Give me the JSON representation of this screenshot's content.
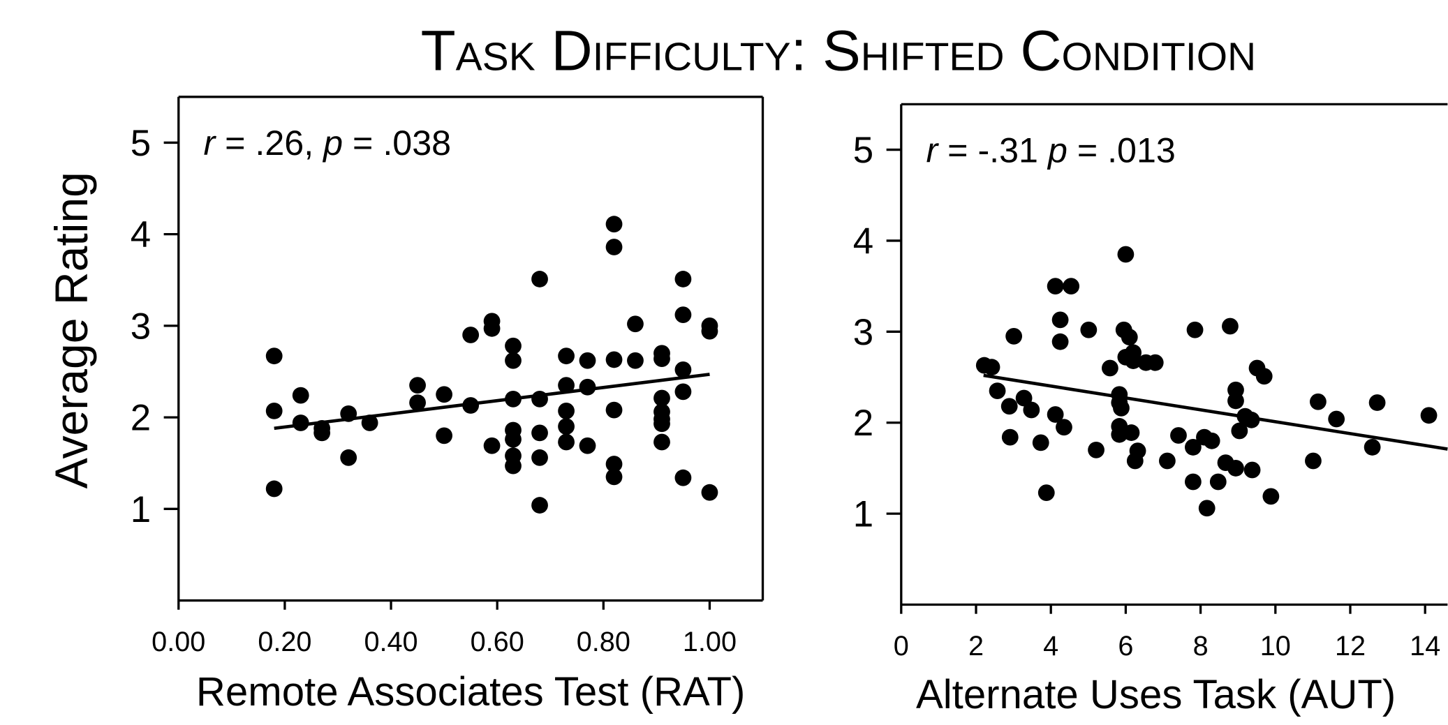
{
  "title": "Task Difficulty: Shifted Condition",
  "chart_data": [
    {
      "type": "scatter",
      "y_label": "Average Rating",
      "x_label": "Remote Associates Test (RAT)",
      "annotation": [
        {
          "text": "r",
          "italic": true
        },
        {
          "text": " = .26, ",
          "italic": false
        },
        {
          "text": "p",
          "italic": true
        },
        {
          "text": " = .038",
          "italic": false
        }
      ],
      "color": "#000000",
      "xlim": [
        0,
        1.1
      ],
      "ylim": [
        0,
        5.5
      ],
      "xticks": [
        {
          "value": 0,
          "label": "0.00"
        },
        {
          "value": 0.2,
          "label": "0.20"
        },
        {
          "value": 0.4,
          "label": "0.40"
        },
        {
          "value": 0.6,
          "label": "0.60"
        },
        {
          "value": 0.8,
          "label": "0.80"
        },
        {
          "value": 1,
          "label": "1.00"
        }
      ],
      "yticks": [
        1,
        2,
        3,
        4,
        5
      ],
      "x": [
        0.18,
        0.18,
        0.18,
        0.23,
        0.23,
        0.27,
        0.27,
        0.32,
        0.32,
        0.36,
        0.45,
        0.45,
        0.5,
        0.5,
        0.55,
        0.55,
        0.59,
        0.59,
        0.59,
        0.63,
        0.63,
        0.63,
        0.63,
        0.63,
        0.63,
        0.63,
        0.68,
        0.68,
        0.68,
        0.68,
        0.68,
        0.73,
        0.73,
        0.73,
        0.73,
        0.73,
        0.77,
        0.77,
        0.77,
        0.82,
        0.82,
        0.82,
        0.82,
        0.82,
        0.82,
        0.86,
        0.86,
        0.91,
        0.91,
        0.91,
        0.91,
        0.91,
        0.91,
        0.91,
        0.95,
        0.95,
        0.95,
        0.95,
        0.95,
        1.0,
        1.0,
        1.0
      ],
      "values": [
        2.67,
        2.07,
        1.22,
        2.24,
        1.94,
        1.88,
        1.83,
        2.04,
        1.56,
        1.94,
        2.35,
        2.16,
        2.25,
        1.8,
        2.9,
        2.13,
        3.05,
        2.97,
        1.69,
        2.78,
        2.62,
        2.2,
        1.86,
        1.76,
        1.58,
        1.47,
        3.51,
        2.2,
        1.83,
        1.56,
        1.04,
        2.67,
        2.35,
        2.07,
        1.9,
        1.73,
        2.62,
        2.33,
        1.69,
        4.11,
        3.86,
        2.63,
        2.08,
        1.49,
        1.35,
        3.02,
        2.62,
        2.7,
        2.64,
        2.21,
        2.06,
        1.98,
        1.93,
        1.73,
        3.51,
        3.12,
        2.52,
        2.28,
        1.34,
        3.0,
        2.94,
        1.18
      ],
      "fit": {
        "x": [
          0.18,
          1.0
        ],
        "values": [
          1.88,
          2.47
        ]
      }
    },
    {
      "type": "scatter",
      "x_label": "Alternate Uses Task (AUT)",
      "annotation": [
        {
          "text": "r",
          "italic": true
        },
        {
          "text": " = -.31 ",
          "italic": false
        },
        {
          "text": "p",
          "italic": true
        },
        {
          "text": " = .013",
          "italic": false
        }
      ],
      "color": "#000000",
      "xlim": [
        0,
        14.6
      ],
      "ylim": [
        0,
        5.5
      ],
      "xticks": [
        0,
        2,
        4,
        6,
        8,
        10,
        12,
        14
      ],
      "yticks": [
        1,
        2,
        3,
        4,
        5
      ],
      "x": [
        2.22,
        2.42,
        2.57,
        2.89,
        2.91,
        3.01,
        3.28,
        3.48,
        3.73,
        3.88,
        4.12,
        4.12,
        4.25,
        4.25,
        4.35,
        4.54,
        5.01,
        5.21,
        5.58,
        5.83,
        5.83,
        5.88,
        5.83,
        5.83,
        6.0,
        5.95,
        6.1,
        6.0,
        6.2,
        6.2,
        6.54,
        6.79,
        6.15,
        6.32,
        6.25,
        7.11,
        7.41,
        7.8,
        7.85,
        7.8,
        8.1,
        8.3,
        8.17,
        8.47,
        8.67,
        8.79,
        8.94,
        8.94,
        8.94,
        9.04,
        9.19,
        9.36,
        9.38,
        9.51,
        9.7,
        9.88,
        11.01,
        11.14,
        11.63,
        12.59,
        12.72,
        14.1
      ],
      "values": [
        2.63,
        2.61,
        2.35,
        2.18,
        1.84,
        2.95,
        2.27,
        2.14,
        1.78,
        1.23,
        2.09,
        3.5,
        3.13,
        2.89,
        1.95,
        3.5,
        3.02,
        1.7,
        2.6,
        2.31,
        2.22,
        2.16,
        1.96,
        1.87,
        3.85,
        3.02,
        2.94,
        2.72,
        2.77,
        2.68,
        2.66,
        2.66,
        1.89,
        1.69,
        1.58,
        1.58,
        1.86,
        1.73,
        3.02,
        1.35,
        1.84,
        1.8,
        1.06,
        1.35,
        1.56,
        3.06,
        2.36,
        2.24,
        1.5,
        1.91,
        2.07,
        2.03,
        1.48,
        2.6,
        2.51,
        1.19,
        1.58,
        2.23,
        2.04,
        1.73,
        2.22,
        2.08
      ],
      "fit": {
        "x": [
          2.2,
          14.6
        ],
        "values": [
          2.52,
          1.71
        ]
      }
    }
  ]
}
